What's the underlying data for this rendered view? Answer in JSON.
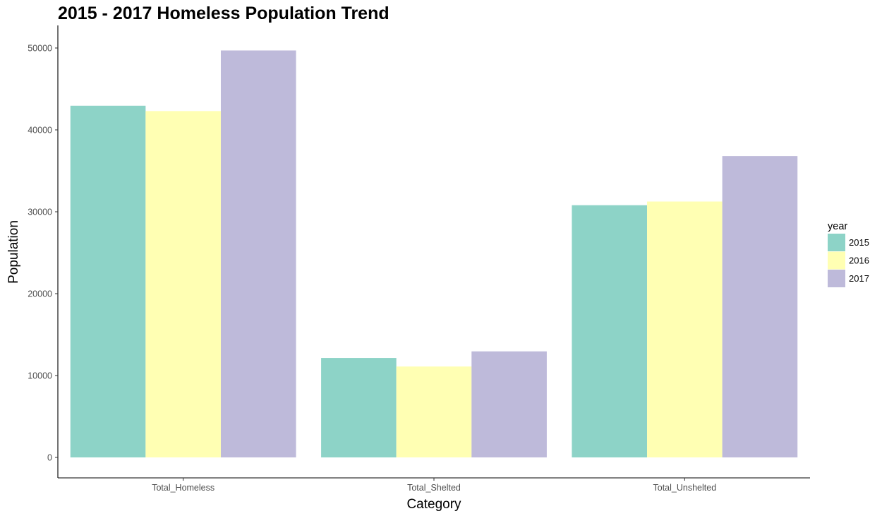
{
  "chart_data": {
    "type": "bar",
    "title": "2015 - 2017 Homeless Population Trend",
    "xlabel": "Category",
    "ylabel": "Population",
    "categories": [
      "Total_Homeless",
      "Total_Shelted",
      "Total_Unshelted"
    ],
    "series": [
      {
        "name": "2015",
        "color": "#8DD3C7",
        "values": [
          42950,
          12150,
          30800
        ]
      },
      {
        "name": "2016",
        "color": "#FFFFB3",
        "values": [
          42300,
          11100,
          31250
        ]
      },
      {
        "name": "2017",
        "color": "#BEBADA",
        "values": [
          49700,
          12950,
          36800
        ]
      }
    ],
    "ylim": [
      0,
      50000
    ],
    "yticks": [
      "0",
      "10000",
      "20000",
      "30000",
      "40000",
      "50000"
    ],
    "legend_title": "year",
    "legend_position": "right",
    "grid": false
  }
}
